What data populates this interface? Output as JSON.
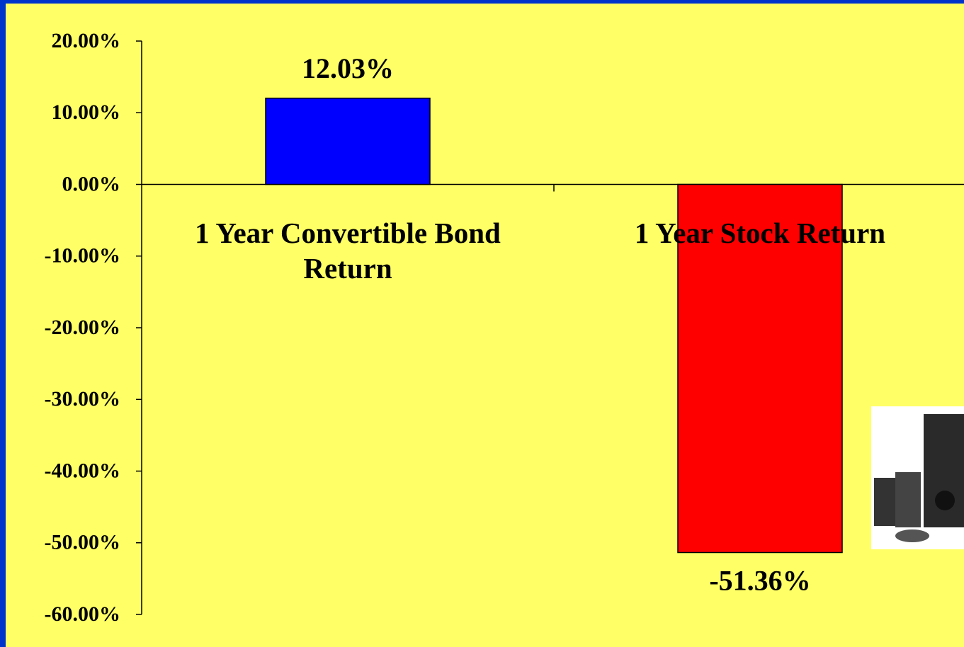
{
  "chart_data": {
    "type": "bar",
    "categories": [
      "1 Year Convertible Bond Return",
      "1 Year Stock Return"
    ],
    "values": [
      12.03,
      -51.36
    ],
    "value_labels": [
      "12.03%",
      "-51.36%"
    ],
    "colors": [
      "#0000ff",
      "#ff0000"
    ],
    "ylim": [
      -60,
      20
    ],
    "yticks": [
      {
        "value": 20,
        "label": "20.00%"
      },
      {
        "value": 10,
        "label": "10.00%"
      },
      {
        "value": 0,
        "label": "0.00%"
      },
      {
        "value": -10,
        "label": "-10.00%"
      },
      {
        "value": -20,
        "label": "-20.00%"
      },
      {
        "value": -30,
        "label": "-30.00%"
      },
      {
        "value": -40,
        "label": "-40.00%"
      },
      {
        "value": -50,
        "label": "-50.00%"
      },
      {
        "value": -60,
        "label": "-60.00%"
      }
    ]
  }
}
